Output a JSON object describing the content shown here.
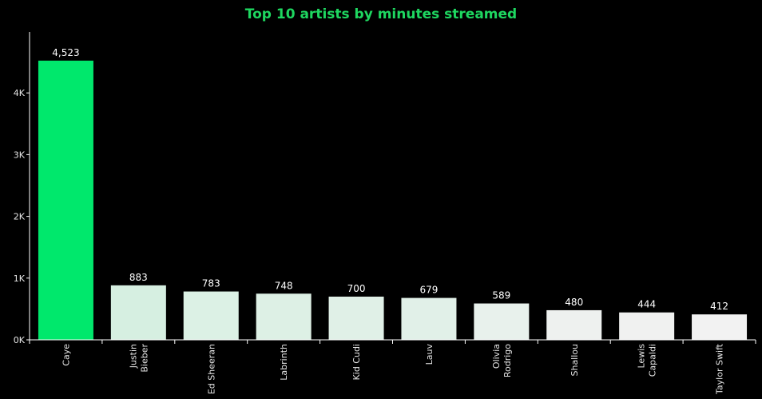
{
  "chart_data": {
    "type": "bar",
    "title": "Top 10 artists by minutes streamed",
    "xlabel": "",
    "ylabel": "",
    "categories": [
      "Caye",
      "Justin Bieber",
      "Ed Sheeran",
      "Labrinth",
      "Kid Cudi",
      "Lauv",
      "Olivia Rodrigo",
      "Shallou",
      "Lewis Capaldi",
      "Taylor Swift"
    ],
    "category_lines": [
      [
        "Caye"
      ],
      [
        "Justin",
        "Bieber"
      ],
      [
        "Ed Sheeran"
      ],
      [
        "Labrinth"
      ],
      [
        "Kid Cudi"
      ],
      [
        "Lauv"
      ],
      [
        "Olivia",
        "Rodrigo"
      ],
      [
        "Shallou"
      ],
      [
        "Lewis",
        "Capaldi"
      ],
      [
        "Taylor Swift"
      ]
    ],
    "values": [
      4523,
      883,
      783,
      748,
      700,
      679,
      589,
      480,
      444,
      412
    ],
    "data_labels": [
      "4,523",
      "883",
      "783",
      "748",
      "700",
      "679",
      "589",
      "480",
      "444",
      "412"
    ],
    "ylim": [
      0,
      5000
    ],
    "yticks": [
      0,
      1000,
      2000,
      3000,
      4000
    ],
    "ytick_labels": [
      "0K",
      "1K",
      "2K",
      "3K",
      "4K"
    ],
    "grid": false,
    "legend": "none",
    "colors": [
      "#00e86c",
      "#d6efe1",
      "#dcf1e5",
      "#ddf0e5",
      "#e0f0e7",
      "#e1f0e8",
      "#e8f1ec",
      "#eef1ef",
      "#f0f1f0",
      "#f2f2f2"
    ],
    "axis_color": "#ffffff",
    "background": "#000000"
  }
}
